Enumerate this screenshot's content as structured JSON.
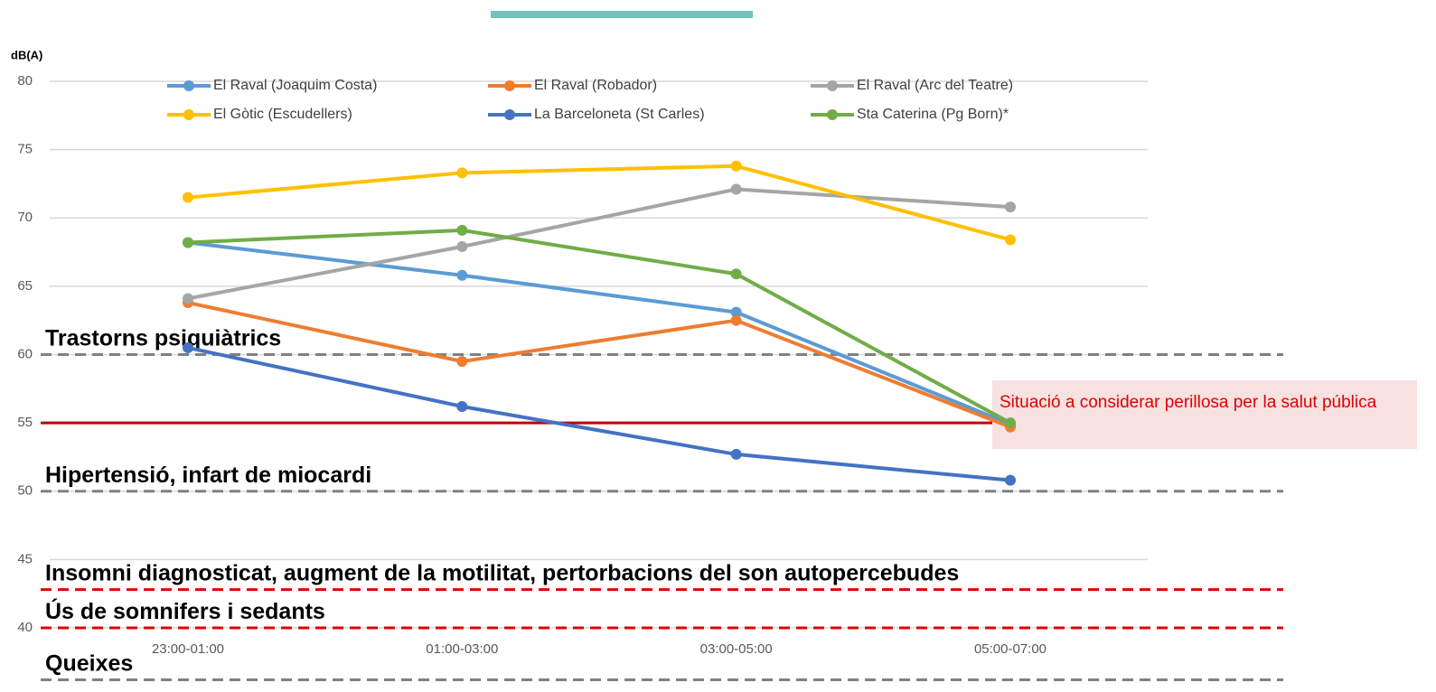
{
  "chart_data": {
    "type": "line",
    "y_label": "dB(A)",
    "categories": [
      "23:00-01:00",
      "01:00-03:00",
      "03:00-05:00",
      "05:00-07:00"
    ],
    "series": [
      {
        "name": "El Raval (Joaquim Costa)",
        "color": "#5B9BD5",
        "values": [
          68.2,
          65.8,
          63.1,
          54.9
        ]
      },
      {
        "name": "El Raval (Robador)",
        "color": "#ED7D31",
        "values": [
          63.8,
          59.5,
          62.5,
          54.7
        ]
      },
      {
        "name": "El Raval (Arc del Teatre)",
        "color": "#A5A5A5",
        "values": [
          64.1,
          67.9,
          72.1,
          70.8
        ]
      },
      {
        "name": "El Gòtic (Escudellers)",
        "color": "#FFC000",
        "values": [
          71.5,
          73.3,
          73.8,
          68.4
        ]
      },
      {
        "name": "La Barceloneta (St Carles)",
        "color": "#4472C4",
        "values": [
          60.5,
          56.2,
          52.7,
          50.8
        ]
      },
      {
        "name": "Sta Caterina (Pg Born)*",
        "color": "#70AD47",
        "values": [
          68.2,
          69.1,
          65.9,
          55.0
        ]
      }
    ],
    "ylim": [
      40,
      80
    ],
    "yticks": [
      40,
      45,
      50,
      55,
      60,
      65,
      70,
      75,
      80
    ],
    "grid": true,
    "thresholds": [
      {
        "value": 60,
        "label": "Trastorns psiquiàtrics",
        "color": "#808080",
        "style": "dashed"
      },
      {
        "value": 55,
        "color": "#C00000",
        "style": "solid"
      },
      {
        "value": 50,
        "label": "Hipertensió, infart de miocardi",
        "color": "#808080",
        "style": "dashed"
      },
      {
        "value": 42.8,
        "label": "Insomni diagnosticat, augment de la motilitat, pertorbacions del son autopercebudes",
        "color": "#E00000",
        "style": "dashed"
      },
      {
        "value": 40,
        "label": "Ús de somnifers i sedants",
        "color": "#E00000",
        "style": "dashed"
      },
      {
        "value": 36.2,
        "label": "Queixes",
        "color": "#808080",
        "style": "dashed"
      }
    ],
    "note": "Situació a considerar perillosa per la salut pública"
  }
}
